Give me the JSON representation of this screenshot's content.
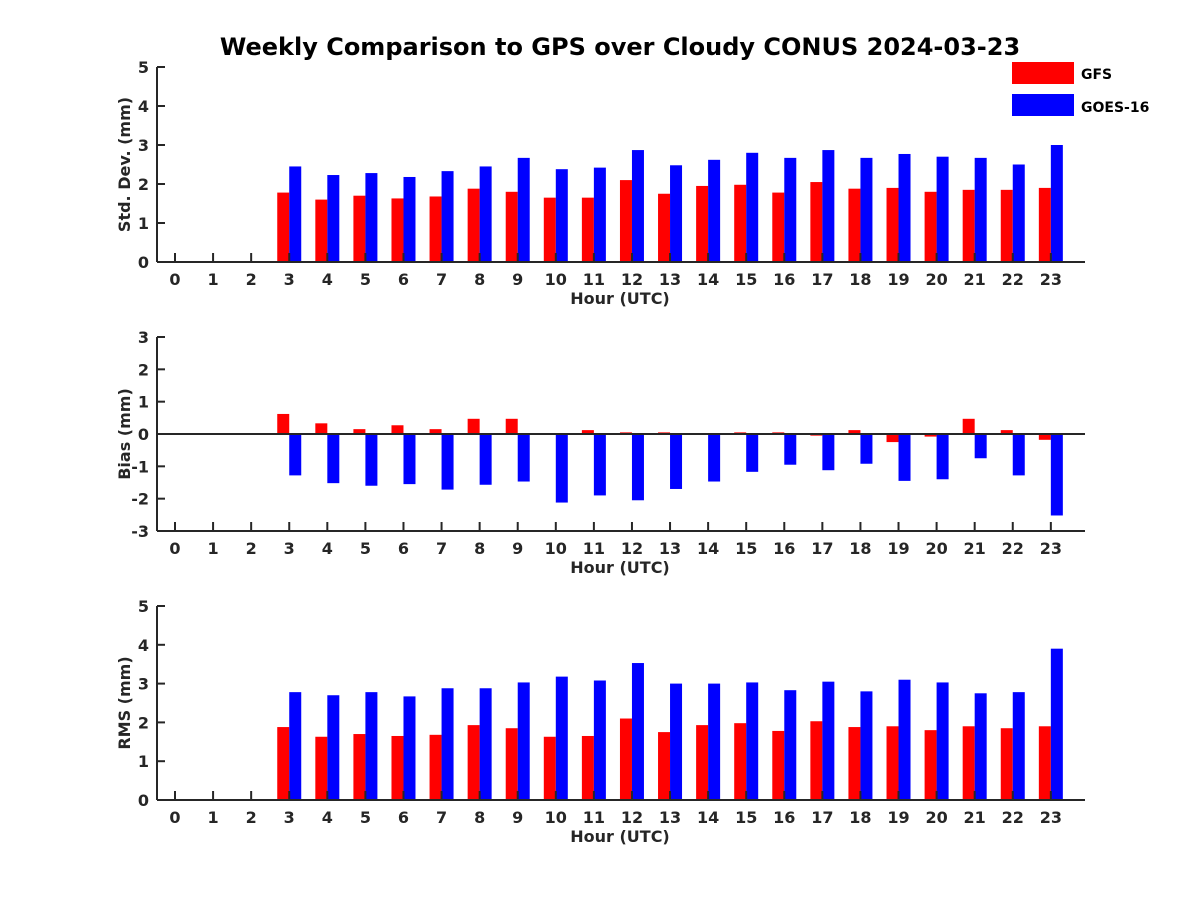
{
  "title": "Weekly Comparison to GPS over Cloudy CONUS 2024-03-23",
  "legend": [
    {
      "name": "GFS",
      "color": "#ff0000"
    },
    {
      "name": "GOES-16",
      "color": "#0000ff"
    }
  ],
  "chart_data": [
    {
      "type": "bar",
      "ylabel": "Std. Dev. (mm)",
      "xlabel": "Hour (UTC)",
      "categories": [
        "0",
        "1",
        "2",
        "3",
        "4",
        "5",
        "6",
        "7",
        "8",
        "9",
        "10",
        "11",
        "12",
        "13",
        "14",
        "15",
        "16",
        "17",
        "18",
        "19",
        "20",
        "21",
        "22",
        "23"
      ],
      "ylim": [
        0,
        5
      ],
      "yticks": [
        0,
        1,
        2,
        3,
        4,
        5
      ],
      "series": [
        {
          "name": "GFS",
          "color": "#ff0000",
          "values": [
            null,
            null,
            null,
            1.78,
            1.6,
            1.7,
            1.63,
            1.68,
            1.88,
            1.8,
            1.65,
            1.65,
            2.1,
            1.75,
            1.95,
            1.98,
            1.78,
            2.05,
            1.88,
            1.9,
            1.8,
            1.85,
            1.85,
            1.9
          ]
        },
        {
          "name": "GOES-16",
          "color": "#0000ff",
          "values": [
            null,
            null,
            null,
            2.45,
            2.23,
            2.28,
            2.18,
            2.33,
            2.45,
            2.67,
            2.38,
            2.42,
            2.87,
            2.48,
            2.62,
            2.8,
            2.67,
            2.87,
            2.67,
            2.77,
            2.7,
            2.67,
            2.5,
            3.0
          ]
        }
      ]
    },
    {
      "type": "bar",
      "ylabel": "Bias (mm)",
      "xlabel": "Hour (UTC)",
      "categories": [
        "0",
        "1",
        "2",
        "3",
        "4",
        "5",
        "6",
        "7",
        "8",
        "9",
        "10",
        "11",
        "12",
        "13",
        "14",
        "15",
        "16",
        "17",
        "18",
        "19",
        "20",
        "21",
        "22",
        "23"
      ],
      "ylim": [
        -3,
        3
      ],
      "yticks": [
        -3,
        -2,
        -1,
        0,
        1,
        2,
        3
      ],
      "series": [
        {
          "name": "GFS",
          "color": "#ff0000",
          "values": [
            null,
            null,
            null,
            0.62,
            0.33,
            0.15,
            0.27,
            0.15,
            0.47,
            0.47,
            0.0,
            0.12,
            0.05,
            0.05,
            0.02,
            0.05,
            0.05,
            -0.05,
            0.12,
            -0.25,
            -0.08,
            0.47,
            0.12,
            -0.18
          ]
        },
        {
          "name": "GOES-16",
          "color": "#0000ff",
          "values": [
            null,
            null,
            null,
            -1.28,
            -1.52,
            -1.6,
            -1.55,
            -1.72,
            -1.57,
            -1.47,
            -2.12,
            -1.9,
            -2.05,
            -1.7,
            -1.47,
            -1.17,
            -0.95,
            -1.12,
            -0.92,
            -1.45,
            -1.4,
            -0.75,
            -1.28,
            -2.52
          ]
        }
      ]
    },
    {
      "type": "bar",
      "ylabel": "RMS (mm)",
      "xlabel": "Hour (UTC)",
      "categories": [
        "0",
        "1",
        "2",
        "3",
        "4",
        "5",
        "6",
        "7",
        "8",
        "9",
        "10",
        "11",
        "12",
        "13",
        "14",
        "15",
        "16",
        "17",
        "18",
        "19",
        "20",
        "21",
        "22",
        "23"
      ],
      "ylim": [
        0,
        5
      ],
      "yticks": [
        0,
        1,
        2,
        3,
        4,
        5
      ],
      "series": [
        {
          "name": "GFS",
          "color": "#ff0000",
          "values": [
            null,
            null,
            null,
            1.88,
            1.63,
            1.7,
            1.65,
            1.68,
            1.93,
            1.85,
            1.63,
            1.65,
            2.1,
            1.75,
            1.93,
            1.98,
            1.78,
            2.03,
            1.88,
            1.9,
            1.8,
            1.9,
            1.85,
            1.9
          ]
        },
        {
          "name": "GOES-16",
          "color": "#0000ff",
          "values": [
            null,
            null,
            null,
            2.78,
            2.7,
            2.78,
            2.67,
            2.88,
            2.88,
            3.03,
            3.18,
            3.08,
            3.53,
            3.0,
            3.0,
            3.03,
            2.83,
            3.05,
            2.8,
            3.1,
            3.03,
            2.75,
            2.78,
            3.9
          ]
        }
      ]
    }
  ]
}
